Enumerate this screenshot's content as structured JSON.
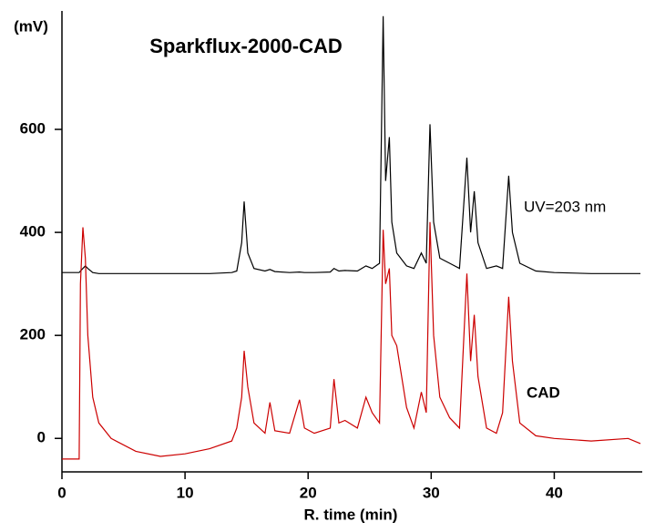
{
  "chart_data": {
    "type": "line",
    "title": "Sparkflux-2000-CAD",
    "x_label": "R. time (min)",
    "y_label": "(mV)",
    "x": [
      0,
      1.4,
      1.5,
      1.7,
      1.9,
      2.1,
      2.5,
      3,
      4,
      6,
      8,
      10,
      12,
      13.8,
      14.2,
      14.6,
      14.8,
      15.1,
      15.6,
      16.5,
      16.9,
      17.3,
      18.5,
      19.3,
      19.7,
      20.5,
      21.8,
      22.1,
      22.5,
      23,
      24,
      24.7,
      25.2,
      25.8,
      26.1,
      26.3,
      26.6,
      26.8,
      27.2,
      28,
      28.6,
      29.2,
      29.6,
      29.9,
      30.2,
      30.7,
      31.5,
      32.3,
      32.9,
      33.2,
      33.5,
      33.8,
      34.5,
      35.3,
      35.8,
      36.3,
      36.6,
      37.2,
      38.5,
      40,
      43,
      46,
      47
    ],
    "series": [
      {
        "name": "UV=203 nm",
        "color": "#000000",
        "values": [
          322,
          322,
          325,
          330,
          335,
          330,
          322,
          320,
          320,
          320,
          320,
          320,
          320,
          322,
          325,
          380,
          460,
          360,
          330,
          325,
          328,
          324,
          322,
          323,
          322,
          322,
          323,
          330,
          325,
          326,
          325,
          335,
          330,
          340,
          820,
          500,
          585,
          420,
          360,
          335,
          330,
          360,
          340,
          610,
          420,
          350,
          340,
          330,
          545,
          400,
          480,
          380,
          330,
          335,
          330,
          510,
          400,
          340,
          325,
          322,
          320,
          320,
          320
        ]
      },
      {
        "name": "CAD",
        "color": "#cc0000",
        "values": [
          -40,
          -40,
          300,
          410,
          350,
          200,
          80,
          30,
          0,
          -25,
          -35,
          -30,
          -20,
          -5,
          20,
          80,
          170,
          100,
          30,
          10,
          70,
          15,
          10,
          75,
          20,
          10,
          20,
          115,
          30,
          35,
          20,
          80,
          50,
          30,
          405,
          300,
          330,
          200,
          180,
          60,
          20,
          90,
          50,
          420,
          200,
          80,
          40,
          20,
          320,
          150,
          240,
          120,
          20,
          10,
          50,
          275,
          150,
          30,
          5,
          0,
          -5,
          0,
          -10
        ]
      }
    ],
    "xlim": [
      0,
      47
    ],
    "ylim": [
      -65,
      830
    ],
    "xticks": [
      0,
      10,
      20,
      30,
      40
    ],
    "yticks": [
      0,
      200,
      400,
      600
    ]
  }
}
